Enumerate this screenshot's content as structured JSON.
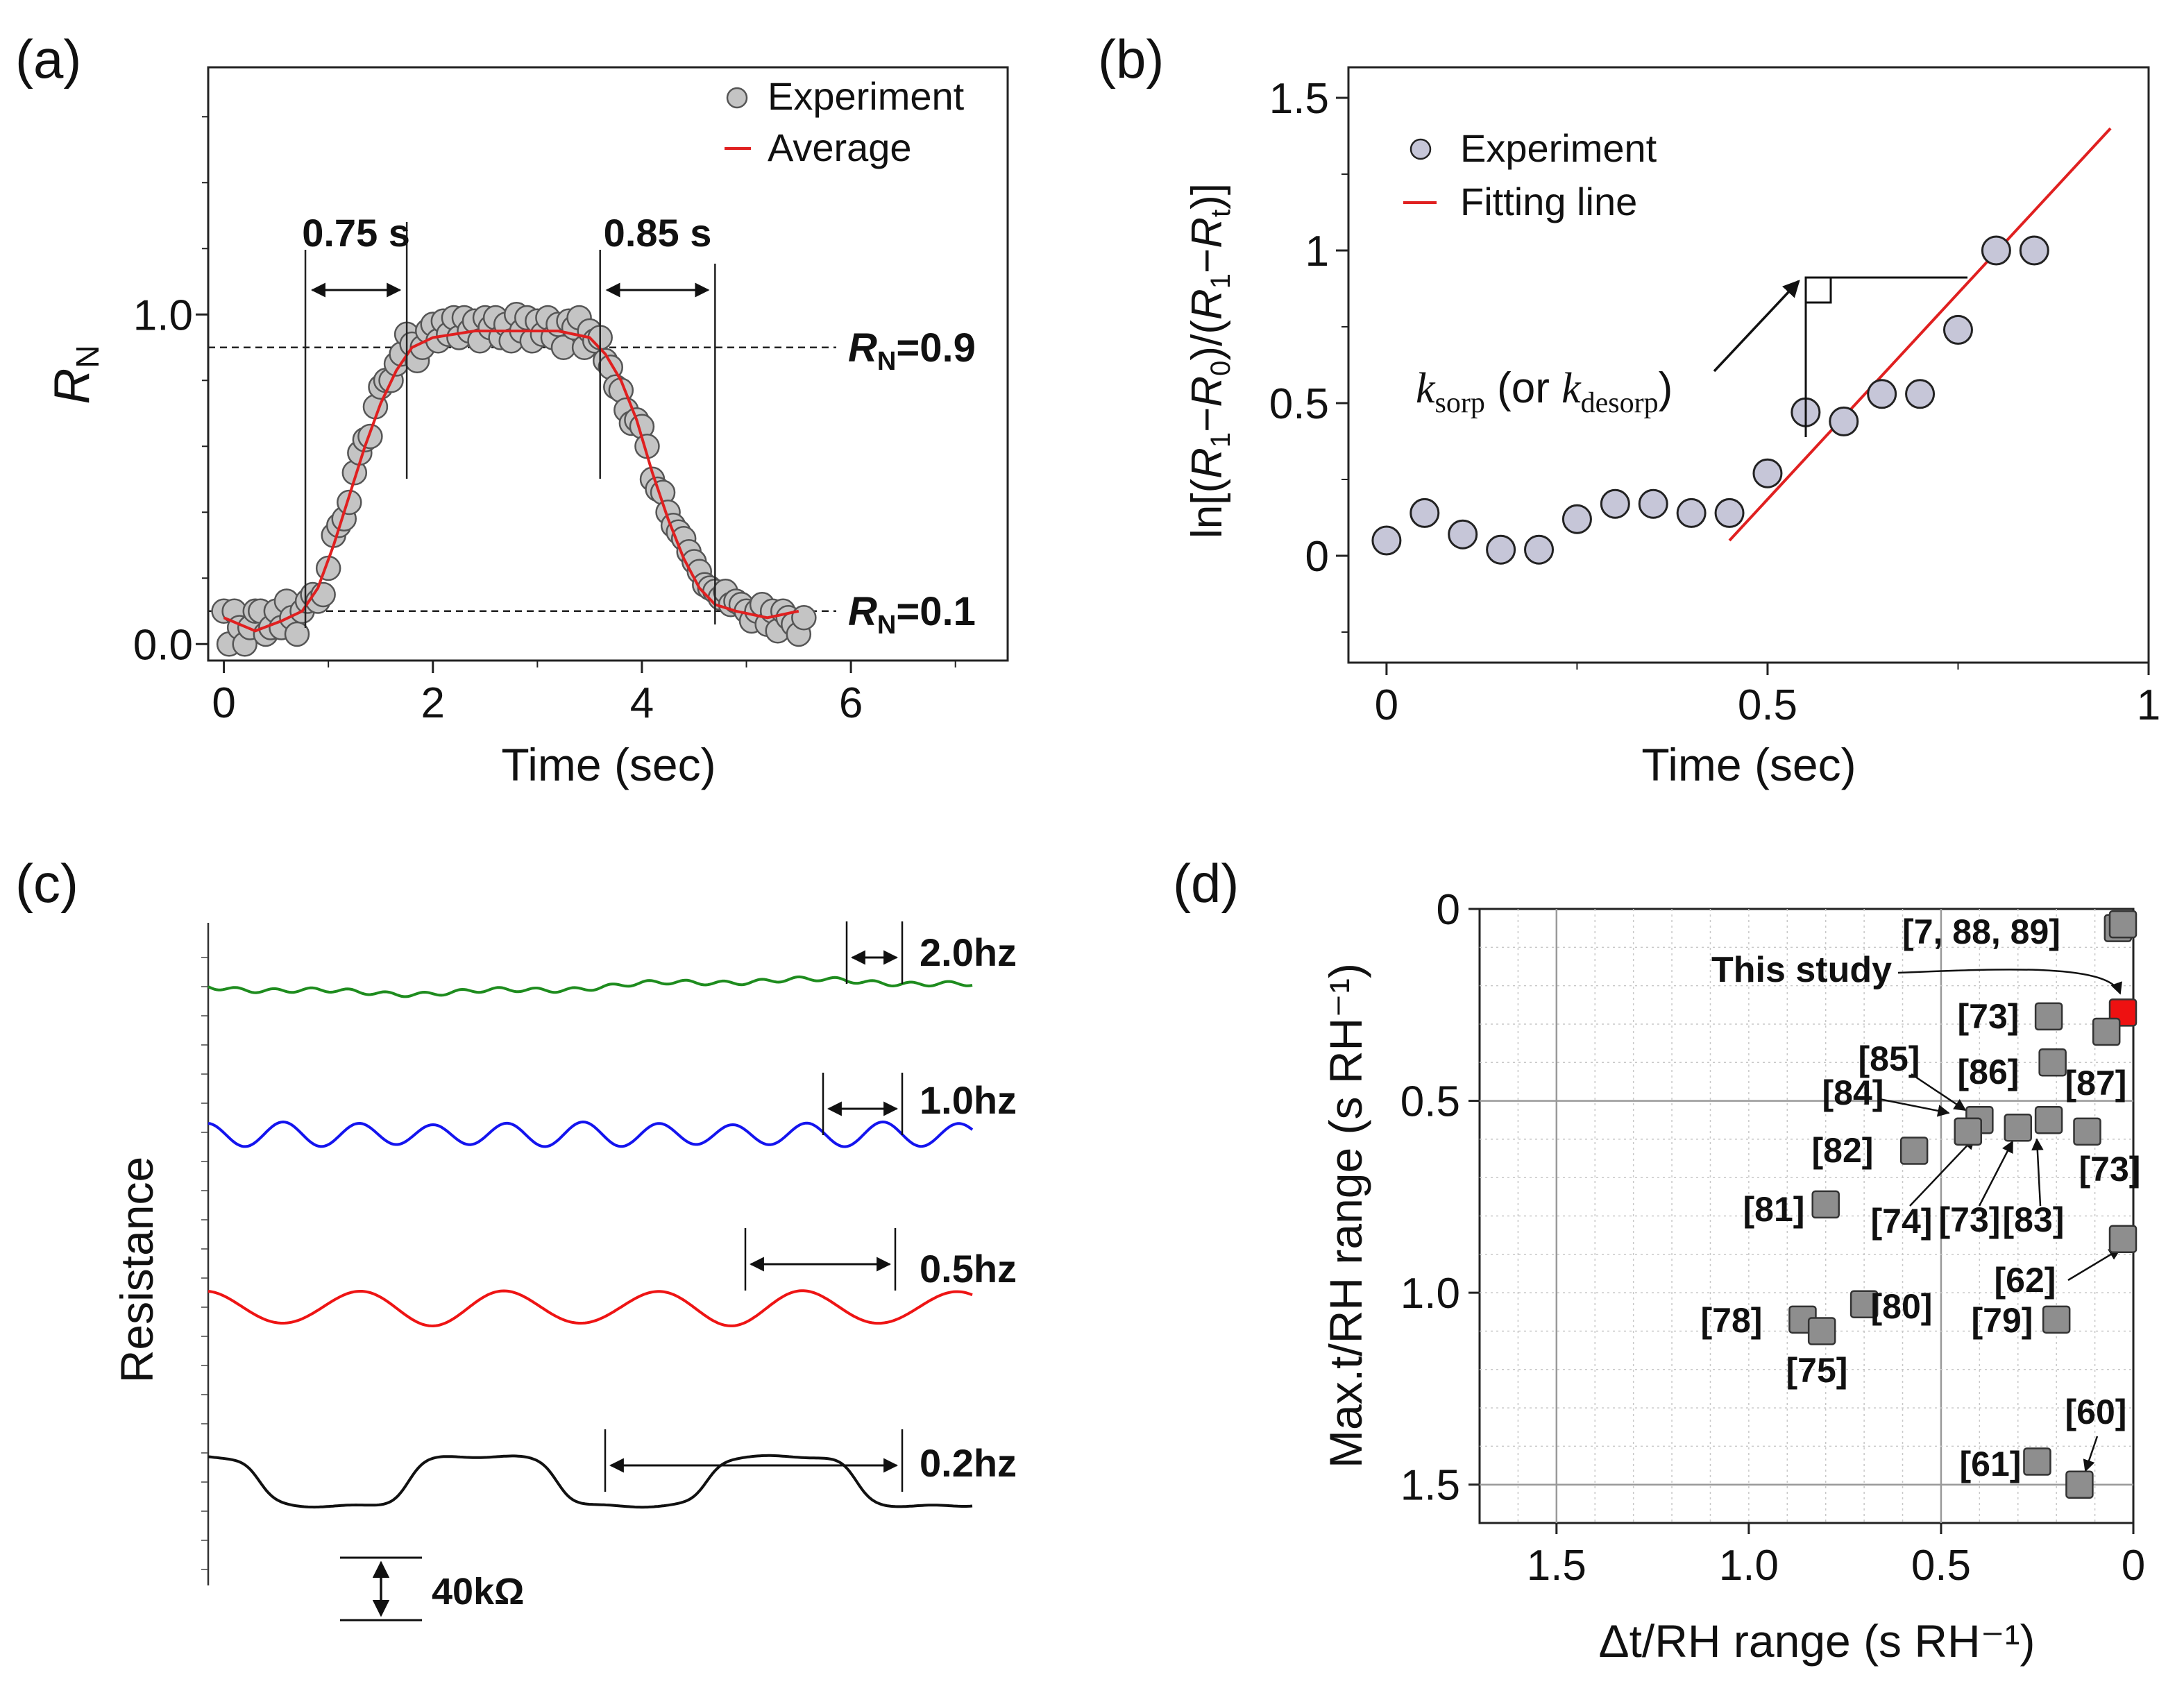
{
  "panels": {
    "a": {
      "label": "(a)"
    },
    "b": {
      "label": "(b)"
    },
    "c": {
      "label": "(c)"
    },
    "d": {
      "label": "(d)"
    }
  },
  "chart_data": [
    {
      "id": "a",
      "type": "scatter",
      "xlabel": "Time (sec)",
      "ylabel_main": "R",
      "ylabel_sub": "N",
      "xlim": [
        -0.15,
        7.5
      ],
      "ylim": [
        -0.05,
        1.75
      ],
      "xticks": [
        "0",
        "2",
        "4",
        "6"
      ],
      "yticks": [
        "0.0",
        "1.0"
      ],
      "legend": [
        "Experiment",
        "Average"
      ],
      "legend_position": "top-right",
      "series": [
        {
          "name": "Experiment",
          "x": [
            0.0,
            0.05,
            0.1,
            0.15,
            0.2,
            0.25,
            0.3,
            0.35,
            0.4,
            0.45,
            0.5,
            0.55,
            0.6,
            0.65,
            0.7,
            0.75,
            0.8,
            0.85,
            0.9,
            0.95,
            1.0,
            1.05,
            1.1,
            1.15,
            1.2,
            1.25,
            1.3,
            1.35,
            1.4,
            1.45,
            1.5,
            1.55,
            1.6,
            1.65,
            1.7,
            1.75,
            1.8,
            1.85,
            1.9,
            1.95,
            2.0,
            2.05,
            2.1,
            2.15,
            2.2,
            2.25,
            2.3,
            2.35,
            2.4,
            2.45,
            2.5,
            2.55,
            2.6,
            2.65,
            2.7,
            2.75,
            2.8,
            2.85,
            2.9,
            2.95,
            3.0,
            3.05,
            3.1,
            3.15,
            3.2,
            3.25,
            3.3,
            3.35,
            3.4,
            3.45,
            3.5,
            3.55,
            3.6,
            3.65,
            3.7,
            3.75,
            3.8,
            3.85,
            3.9,
            3.95,
            4.0,
            4.05,
            4.1,
            4.15,
            4.2,
            4.25,
            4.3,
            4.35,
            4.4,
            4.45,
            4.5,
            4.55,
            4.6,
            4.65,
            4.7,
            4.75,
            4.8,
            4.85,
            4.9,
            4.95,
            5.0,
            5.05,
            5.1,
            5.15,
            5.2,
            5.25,
            5.3,
            5.35,
            5.4,
            5.45,
            5.5,
            5.55
          ],
          "y": [
            0.1,
            0.0,
            0.1,
            0.05,
            0.0,
            0.05,
            0.1,
            0.1,
            0.03,
            0.05,
            0.1,
            0.05,
            0.13,
            0.08,
            0.03,
            0.1,
            0.13,
            0.15,
            0.13,
            0.15,
            0.23,
            0.33,
            0.36,
            0.38,
            0.43,
            0.52,
            0.58,
            0.62,
            0.63,
            0.72,
            0.78,
            0.8,
            0.8,
            0.85,
            0.88,
            0.94,
            0.91,
            0.86,
            0.9,
            0.95,
            0.97,
            0.92,
            0.98,
            0.94,
            0.99,
            0.93,
            0.99,
            0.95,
            0.98,
            0.92,
            0.99,
            0.96,
            0.99,
            0.93,
            0.97,
            0.92,
            1.0,
            0.95,
            0.99,
            0.92,
            0.98,
            0.94,
            0.99,
            0.93,
            0.97,
            0.9,
            0.98,
            0.96,
            0.99,
            0.9,
            0.95,
            0.92,
            0.93,
            0.86,
            0.84,
            0.78,
            0.77,
            0.71,
            0.67,
            0.68,
            0.66,
            0.6,
            0.5,
            0.47,
            0.46,
            0.4,
            0.36,
            0.34,
            0.32,
            0.28,
            0.25,
            0.22,
            0.18,
            0.17,
            0.16,
            0.14,
            0.16,
            0.12,
            0.13,
            0.12,
            0.1,
            0.07,
            0.1,
            0.12,
            0.06,
            0.1,
            0.04,
            0.1,
            0.08,
            0.06,
            0.03,
            0.08
          ]
        },
        {
          "name": "Average",
          "x": [
            0.0,
            0.3,
            0.55,
            0.75,
            0.9,
            1.05,
            1.2,
            1.35,
            1.5,
            1.65,
            1.8,
            2.0,
            2.4,
            2.8,
            3.2,
            3.5,
            3.65,
            3.8,
            3.95,
            4.1,
            4.25,
            4.4,
            4.55,
            4.7,
            4.9,
            5.2,
            5.5
          ],
          "y": [
            0.08,
            0.04,
            0.07,
            0.1,
            0.17,
            0.3,
            0.45,
            0.6,
            0.73,
            0.83,
            0.9,
            0.93,
            0.95,
            0.95,
            0.95,
            0.93,
            0.88,
            0.8,
            0.68,
            0.52,
            0.38,
            0.26,
            0.17,
            0.12,
            0.1,
            0.08,
            0.1
          ]
        }
      ],
      "annotations": {
        "rise_time": "0.75 s",
        "fall_time": "0.85 s",
        "upper_label_main": "R",
        "upper_label_sub": "N",
        "upper_label_val": "=0.9",
        "lower_label_main": "R",
        "lower_label_sub": "N",
        "lower_label_val": "=0.1",
        "upper_level": 0.9,
        "lower_level": 0.1
      }
    },
    {
      "id": "b",
      "type": "scatter",
      "xlabel": "Time (sec)",
      "ylabel": "ln[(R1−R0)/(R1−Rt)]",
      "xlim": [
        -0.05,
        1.0
      ],
      "ylim": [
        -0.35,
        1.6
      ],
      "xticks": [
        "0",
        "0.5",
        "1"
      ],
      "yticks": [
        "0",
        "0.5",
        "1",
        "1.5"
      ],
      "legend": [
        "Experiment",
        "Fitting line"
      ],
      "legend_position": "top-left",
      "series": [
        {
          "name": "Experiment",
          "x": [
            0.0,
            0.05,
            0.1,
            0.15,
            0.2,
            0.25,
            0.3,
            0.35,
            0.4,
            0.45,
            0.5,
            0.55,
            0.6,
            0.65,
            0.7,
            0.75,
            0.8,
            0.85
          ],
          "y": [
            0.05,
            0.14,
            0.07,
            0.02,
            0.02,
            0.12,
            0.17,
            0.17,
            0.14,
            0.14,
            0.27,
            0.47,
            0.44,
            0.53,
            0.53,
            0.74,
            1.0,
            1.0
          ]
        },
        {
          "name": "Fitting line",
          "x": [
            0.45,
            0.95
          ],
          "y": [
            0.05,
            1.4
          ]
        }
      ],
      "annotations": {
        "rate_label_k": "k",
        "rate_label_sorp": "sorp",
        "rate_label_mid": " (or ",
        "rate_label_desorp": "desorp",
        "rate_label_end": ")"
      }
    },
    {
      "id": "c",
      "type": "line",
      "ylabel": "Resistance",
      "scale_label": "40kΩ",
      "series": [
        {
          "name": "2.0hz",
          "color": "#1e8c1e",
          "frequency_hz": 2.0
        },
        {
          "name": "1.0hz",
          "color": "#1414ee",
          "frequency_hz": 1.0
        },
        {
          "name": "0.5hz",
          "color": "#ee1414",
          "frequency_hz": 0.5
        },
        {
          "name": "0.2hz",
          "color": "#111111",
          "frequency_hz": 0.2
        }
      ]
    },
    {
      "id": "d",
      "type": "scatter",
      "xlabel": "Δt/RH range (s RH⁻¹)",
      "ylabel": "Max.t/RH range (s RH⁻¹)",
      "xlim": [
        1.7,
        0.0
      ],
      "ylim": [
        1.6,
        0.0
      ],
      "xticks": [
        "1.5",
        "1.0",
        "0.5",
        "0"
      ],
      "yticks": [
        "0",
        "0.5",
        "1.0",
        "1.5"
      ],
      "highlight_label": "This study",
      "highlight_color": "#ee1111",
      "points": [
        {
          "label": "[7, 88, 89]",
          "x": 0.04,
          "y": 0.05
        },
        {
          "label": "[7, 88, 89]",
          "x": 0.02,
          "y": 0.04
        },
        {
          "label": "This study",
          "x": 0.01,
          "y": 0.27,
          "highlight": true
        },
        {
          "label": "[73]",
          "x": 0.22,
          "y": 0.28
        },
        {
          "label": "[87]",
          "x": 0.07,
          "y": 0.32
        },
        {
          "label": "[86]",
          "x": 0.21,
          "y": 0.4
        },
        {
          "label": "[85]",
          "x": 0.4,
          "y": 0.55
        },
        {
          "label": "[84]",
          "x": 0.43,
          "y": 0.58
        },
        {
          "label": "[74]",
          "x": 0.43,
          "y": 0.58
        },
        {
          "label": "[73]",
          "x": 0.3,
          "y": 0.57
        },
        {
          "label": "[83]",
          "x": 0.22,
          "y": 0.55
        },
        {
          "label": "[73]",
          "x": 0.12,
          "y": 0.58
        },
        {
          "label": "[82]",
          "x": 0.57,
          "y": 0.63
        },
        {
          "label": "[81]",
          "x": 0.8,
          "y": 0.77
        },
        {
          "label": "[62]",
          "x": 0.0,
          "y": 0.86
        },
        {
          "label": "[80]",
          "x": 0.7,
          "y": 1.03
        },
        {
          "label": "[79]",
          "x": 0.2,
          "y": 1.07
        },
        {
          "label": "[78]",
          "x": 0.86,
          "y": 1.07
        },
        {
          "label": "[75]",
          "x": 0.81,
          "y": 1.1
        },
        {
          "label": "[61]",
          "x": 0.25,
          "y": 1.44
        },
        {
          "label": "[60]",
          "x": 0.14,
          "y": 1.5
        }
      ]
    }
  ],
  "labels_d": {
    "l_7": "[7, 88, 89]",
    "l_73a": "[73]",
    "l_85": "[85]",
    "l_86": "[86]",
    "l_87": "[87]",
    "l_84": "[84]",
    "l_82": "[82]",
    "l_73b": "[73]",
    "l_81": "[81]",
    "l_74": "[74]",
    "l_73c": "[73]",
    "l_83": "[83]",
    "l_62": "[62]",
    "l_78": "[78]",
    "l_80": "[80]",
    "l_79": "[79]",
    "l_75": "[75]",
    "l_60": "[60]",
    "l_61": "[61]"
  }
}
